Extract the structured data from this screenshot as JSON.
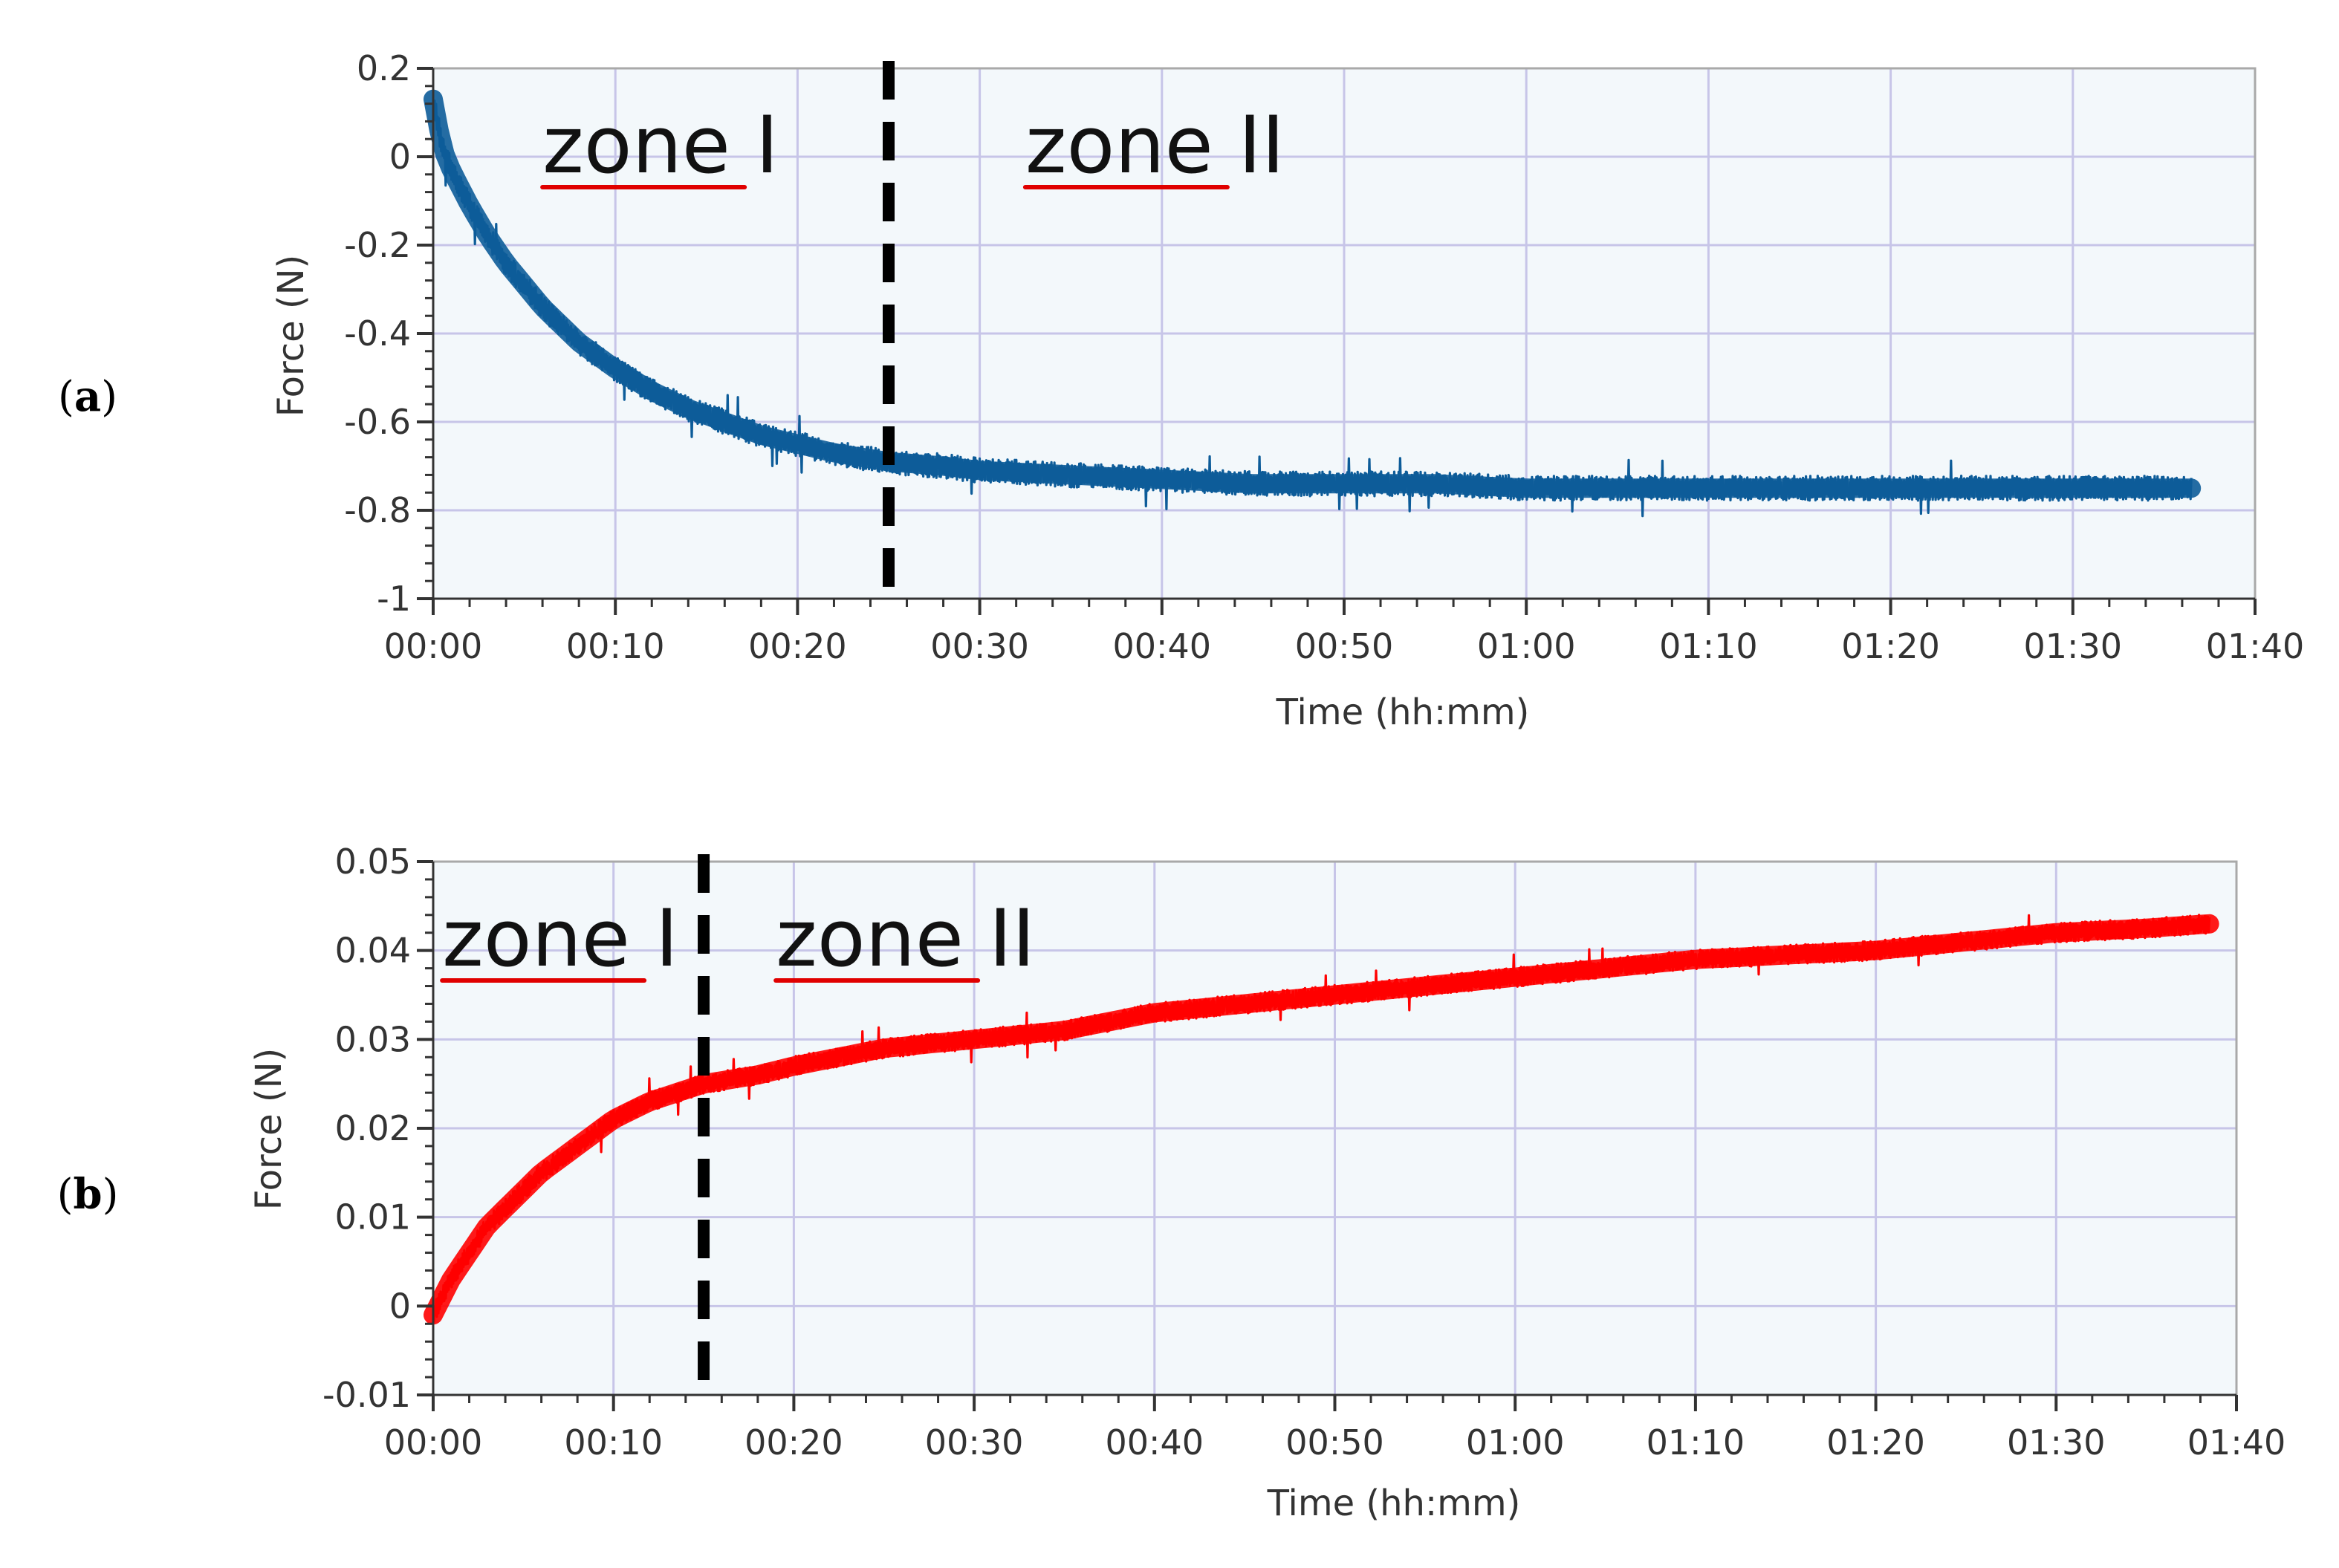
{
  "chart_data": [
    {
      "type": "line",
      "panel_label_open": "(",
      "panel_label_letter": "a",
      "panel_label_close": ")",
      "xlabel": "Time (hh:mm)",
      "ylabel": "Force (N)",
      "xlim": [
        0,
        100
      ],
      "ylim": [
        -1,
        0.2
      ],
      "x_ticks": [
        "00:00",
        "00:10",
        "00:20",
        "00:30",
        "00:40",
        "00:50",
        "01:00",
        "01:10",
        "01:20",
        "01:30",
        "01:40"
      ],
      "y_ticks": [
        "0.2",
        "0",
        "-0.2",
        "-0.4",
        "-0.6",
        "-0.8",
        "-1"
      ],
      "y_tick_values": [
        0.2,
        0,
        -0.2,
        -0.4,
        -0.6,
        -0.8,
        -1
      ],
      "grid": true,
      "divider_x": 25,
      "zone_labels": [
        {
          "text": "zone I",
          "underline_chars": 4,
          "x": 6
        },
        {
          "text": "zone II",
          "underline_chars": 4,
          "x": 32.5
        }
      ],
      "series": [
        {
          "color": "#0d5c99",
          "noise": 0.028,
          "points": [
            [
              0,
              0.13
            ],
            [
              0.5,
              0.02
            ],
            [
              1,
              -0.03
            ],
            [
              2,
              -0.11
            ],
            [
              3,
              -0.18
            ],
            [
              4,
              -0.24
            ],
            [
              5,
              -0.29
            ],
            [
              6,
              -0.34
            ],
            [
              7,
              -0.38
            ],
            [
              8,
              -0.42
            ],
            [
              9,
              -0.45
            ],
            [
              10,
              -0.48
            ],
            [
              12,
              -0.53
            ],
            [
              14,
              -0.57
            ],
            [
              16,
              -0.6
            ],
            [
              18,
              -0.63
            ],
            [
              20,
              -0.65
            ],
            [
              22,
              -0.67
            ],
            [
              25,
              -0.69
            ],
            [
              28,
              -0.7
            ],
            [
              30,
              -0.71
            ],
            [
              35,
              -0.72
            ],
            [
              40,
              -0.73
            ],
            [
              45,
              -0.74
            ],
            [
              50,
              -0.74
            ],
            [
              55,
              -0.74
            ],
            [
              60,
              -0.75
            ],
            [
              65,
              -0.75
            ],
            [
              70,
              -0.75
            ],
            [
              75,
              -0.75
            ],
            [
              80,
              -0.75
            ],
            [
              85,
              -0.75
            ],
            [
              90,
              -0.75
            ],
            [
              96.5,
              -0.75
            ]
          ]
        }
      ]
    },
    {
      "type": "line",
      "panel_label_open": "(",
      "panel_label_letter": "b",
      "panel_label_close": ")",
      "xlabel": "Time (hh:mm)",
      "ylabel": "Force (N)",
      "xlim": [
        0,
        100
      ],
      "ylim": [
        -0.01,
        0.05
      ],
      "x_ticks": [
        "00:00",
        "00:10",
        "00:20",
        "00:30",
        "00:40",
        "00:50",
        "01:00",
        "01:10",
        "01:20",
        "01:30",
        "01:40"
      ],
      "y_ticks": [
        "0.05",
        "0.04",
        "0.03",
        "0.02",
        "0.01",
        "0",
        "-0.01"
      ],
      "y_tick_values": [
        0.05,
        0.04,
        0.03,
        0.02,
        0.01,
        0,
        -0.01
      ],
      "grid": true,
      "divider_x": 15,
      "zone_labels": [
        {
          "text": "zone I",
          "underline_chars": 4,
          "x": 0.5
        },
        {
          "text": "zone II",
          "underline_chars": 4,
          "x": 19
        }
      ],
      "series": [
        {
          "color": "#ff0000",
          "noise": 0.0011,
          "points": [
            [
              0,
              -0.001
            ],
            [
              0.5,
              0.001
            ],
            [
              1,
              0.003
            ],
            [
              2,
              0.006
            ],
            [
              3,
              0.009
            ],
            [
              4,
              0.011
            ],
            [
              5,
              0.013
            ],
            [
              6,
              0.015
            ],
            [
              8,
              0.018
            ],
            [
              10,
              0.021
            ],
            [
              12,
              0.023
            ],
            [
              15,
              0.025
            ],
            [
              18,
              0.026
            ],
            [
              20,
              0.027
            ],
            [
              25,
              0.029
            ],
            [
              30,
              0.03
            ],
            [
              35,
              0.031
            ],
            [
              40,
              0.033
            ],
            [
              45,
              0.034
            ],
            [
              50,
              0.035
            ],
            [
              55,
              0.036
            ],
            [
              60,
              0.037
            ],
            [
              65,
              0.038
            ],
            [
              70,
              0.039
            ],
            [
              75,
              0.0395
            ],
            [
              80,
              0.04
            ],
            [
              85,
              0.041
            ],
            [
              90,
              0.042
            ],
            [
              95,
              0.0425
            ],
            [
              98.5,
              0.043
            ]
          ]
        }
      ]
    }
  ]
}
